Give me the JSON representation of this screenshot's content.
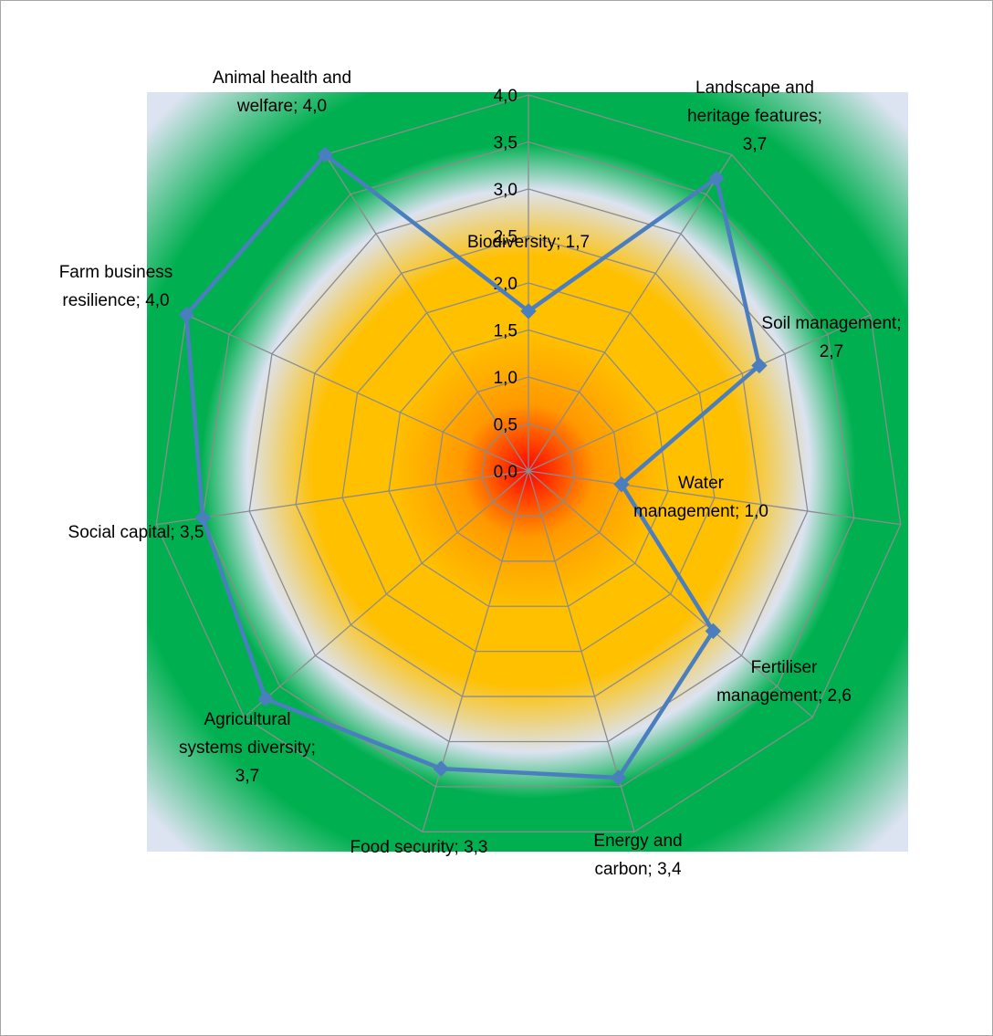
{
  "chart_data": {
    "type": "radar",
    "title": "",
    "range": [
      0,
      4
    ],
    "ticks": [
      "0,0",
      "0,5",
      "1,0",
      "1,5",
      "2,0",
      "2,5",
      "3,0",
      "3,5",
      "4,0"
    ],
    "categories": [
      "Biodiversity",
      "Landscape and heritage features",
      "Soil management",
      "Water management",
      "Fertiliser management",
      "Energy and carbon",
      "Food security",
      "Agricultural systems diversity",
      "Social capital",
      "Farm business resilience",
      "Animal health and welfare"
    ],
    "values": [
      1.7,
      3.7,
      2.7,
      1.0,
      2.6,
      3.4,
      3.3,
      3.7,
      3.5,
      4.0,
      4.0
    ],
    "data_labels": [
      [
        "Biodiversity; 1,7"
      ],
      [
        "Landscape and",
        "heritage features;",
        "3,7"
      ],
      [
        "Soil management;",
        "2,7"
      ],
      [
        "Water",
        "management; 1,0"
      ],
      [
        "Fertiliser",
        "management; 2,6"
      ],
      [
        "Energy and",
        "carbon; 3,4"
      ],
      [
        "Food security; 3,3"
      ],
      [
        "Agricultural",
        "systems diversity;",
        "3,7"
      ],
      [
        "Social capital; 3,5"
      ],
      [
        "Farm business",
        "resilience; 4,0"
      ],
      [
        "Animal health and",
        "welfare; 4,0"
      ]
    ],
    "series_color": "#4a7ebf",
    "grid_color": "#8c8c8c",
    "background_colors": {
      "center": "#ff0000",
      "orange": "#ff9900",
      "yellow": "#ffc000",
      "pale": "#dce3f1",
      "green": "#00b050",
      "outer": "#dce3f1"
    }
  }
}
